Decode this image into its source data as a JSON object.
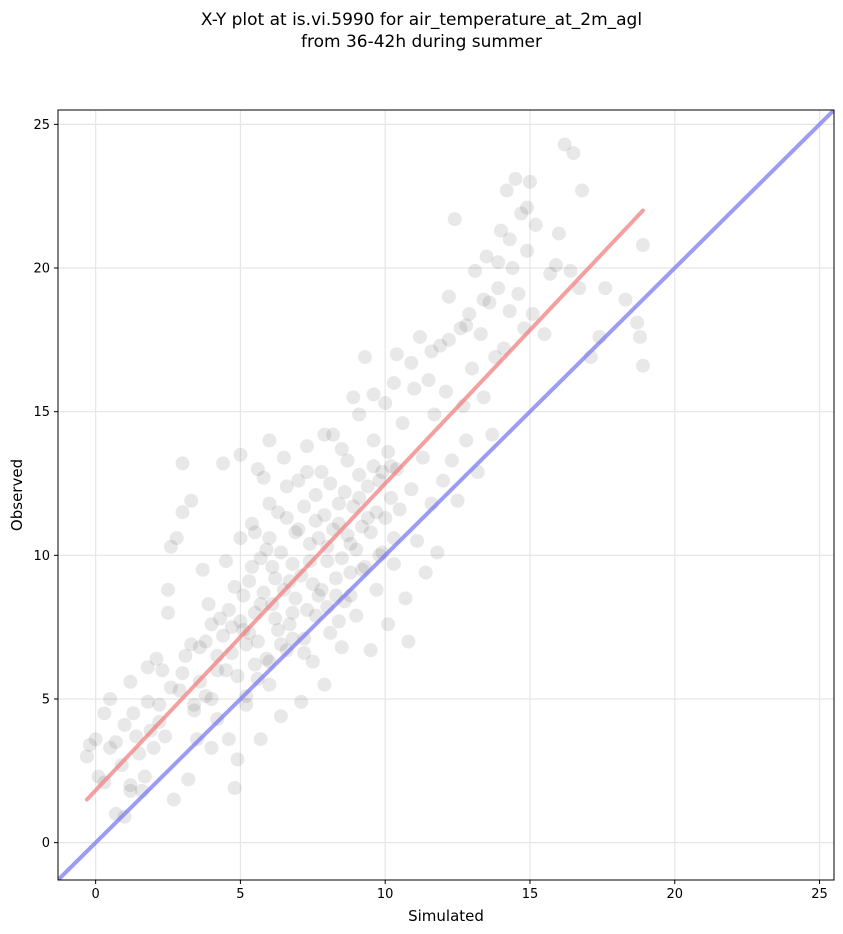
{
  "chart_data": {
    "type": "scatter",
    "title_line1": "X-Y plot at is.vi.5990 for air_temperature_at_2m_agl",
    "title_line2": "from 36-42h during summer",
    "xlabel": "Simulated",
    "ylabel": "Observed",
    "xlim": [
      -1.3,
      25.5
    ],
    "ylim": [
      -1.3,
      25.5
    ],
    "xticks": [
      0,
      5,
      10,
      15,
      20,
      25
    ],
    "yticks": [
      0,
      5,
      10,
      15,
      20,
      25
    ],
    "grid": true,
    "point_color": "#000000",
    "point_alpha": 0.09,
    "fit_line": {
      "color": "#f08080",
      "x": [
        -0.3,
        18.9
      ],
      "y": [
        1.5,
        22.0
      ]
    },
    "identity_line": {
      "color": "#7b7bf0",
      "x": [
        -1.3,
        25.5
      ],
      "y": [
        -1.3,
        25.5
      ]
    },
    "points": [
      [
        -0.3,
        3.0
      ],
      [
        -0.2,
        3.4
      ],
      [
        0.0,
        3.6
      ],
      [
        0.1,
        2.3
      ],
      [
        0.3,
        2.1
      ],
      [
        0.3,
        4.5
      ],
      [
        0.5,
        3.3
      ],
      [
        0.5,
        5.0
      ],
      [
        0.7,
        3.5
      ],
      [
        0.7,
        1.0
      ],
      [
        1.0,
        0.9
      ],
      [
        1.0,
        4.1
      ],
      [
        1.2,
        2.0
      ],
      [
        1.2,
        1.8
      ],
      [
        1.2,
        5.6
      ],
      [
        1.3,
        4.5
      ],
      [
        1.5,
        3.1
      ],
      [
        1.6,
        1.8
      ],
      [
        1.7,
        2.3
      ],
      [
        1.8,
        6.1
      ],
      [
        1.8,
        4.9
      ],
      [
        2.0,
        3.3
      ],
      [
        2.2,
        4.2
      ],
      [
        2.3,
        6.0
      ],
      [
        2.4,
        3.7
      ],
      [
        2.5,
        8.8
      ],
      [
        2.5,
        8.0
      ],
      [
        2.6,
        10.3
      ],
      [
        2.7,
        1.5
      ],
      [
        2.8,
        10.6
      ],
      [
        2.9,
        5.3
      ],
      [
        3.0,
        13.2
      ],
      [
        3.0,
        11.5
      ],
      [
        3.1,
        6.5
      ],
      [
        3.2,
        2.2
      ],
      [
        3.3,
        11.9
      ],
      [
        3.3,
        6.9
      ],
      [
        3.4,
        4.8
      ],
      [
        3.5,
        3.6
      ],
      [
        3.6,
        5.6
      ],
      [
        3.7,
        9.5
      ],
      [
        3.8,
        7.0
      ],
      [
        3.9,
        8.3
      ],
      [
        4.0,
        5.0
      ],
      [
        4.0,
        3.3
      ],
      [
        4.2,
        6.5
      ],
      [
        4.2,
        4.3
      ],
      [
        4.3,
        7.8
      ],
      [
        4.4,
        13.2
      ],
      [
        4.5,
        6.0
      ],
      [
        4.6,
        3.6
      ],
      [
        4.7,
        7.5
      ],
      [
        4.8,
        1.9
      ],
      [
        4.8,
        8.9
      ],
      [
        4.9,
        2.9
      ],
      [
        5.0,
        10.6
      ],
      [
        5.0,
        13.5
      ],
      [
        5.1,
        7.4
      ],
      [
        5.2,
        4.8
      ],
      [
        5.3,
        9.1
      ],
      [
        5.4,
        11.1
      ],
      [
        5.5,
        6.2
      ],
      [
        5.6,
        13.0
      ],
      [
        5.7,
        3.6
      ],
      [
        5.7,
        8.3
      ],
      [
        5.8,
        12.7
      ],
      [
        5.9,
        10.2
      ],
      [
        6.0,
        5.5
      ],
      [
        6.0,
        14.0
      ],
      [
        6.1,
        9.6
      ],
      [
        6.2,
        7.8
      ],
      [
        6.3,
        11.5
      ],
      [
        6.4,
        4.4
      ],
      [
        6.5,
        13.4
      ],
      [
        6.6,
        6.7
      ],
      [
        6.7,
        9.1
      ],
      [
        6.8,
        8.0
      ],
      [
        6.9,
        10.8
      ],
      [
        7.0,
        12.6
      ],
      [
        7.1,
        4.9
      ],
      [
        7.2,
        7.1
      ],
      [
        7.3,
        13.8
      ],
      [
        7.4,
        9.8
      ],
      [
        7.5,
        6.3
      ],
      [
        7.6,
        11.2
      ],
      [
        7.7,
        8.6
      ],
      [
        7.8,
        12.9
      ],
      [
        7.9,
        5.5
      ],
      [
        8.0,
        10.3
      ],
      [
        8.1,
        7.3
      ],
      [
        8.2,
        14.2
      ],
      [
        8.3,
        9.2
      ],
      [
        8.4,
        11.8
      ],
      [
        8.5,
        6.8
      ],
      [
        8.6,
        8.4
      ],
      [
        8.7,
        13.3
      ],
      [
        8.8,
        10.4
      ],
      [
        8.9,
        15.5
      ],
      [
        9.0,
        7.9
      ],
      [
        9.1,
        12.0
      ],
      [
        9.2,
        9.5
      ],
      [
        9.3,
        16.9
      ],
      [
        9.4,
        11.3
      ],
      [
        9.5,
        6.7
      ],
      [
        9.6,
        14.0
      ],
      [
        9.7,
        8.8
      ],
      [
        9.8,
        12.6
      ],
      [
        9.9,
        10.1
      ],
      [
        10.0,
        15.3
      ],
      [
        10.1,
        7.6
      ],
      [
        10.2,
        13.1
      ],
      [
        10.3,
        9.7
      ],
      [
        10.4,
        17.0
      ],
      [
        10.5,
        11.6
      ],
      [
        10.6,
        14.6
      ],
      [
        10.7,
        8.5
      ],
      [
        10.8,
        7.0
      ],
      [
        10.9,
        12.3
      ],
      [
        11.0,
        15.8
      ],
      [
        11.1,
        10.5
      ],
      [
        11.2,
        17.6
      ],
      [
        11.3,
        13.4
      ],
      [
        11.4,
        9.4
      ],
      [
        11.5,
        16.1
      ],
      [
        11.6,
        11.8
      ],
      [
        11.7,
        14.9
      ],
      [
        11.8,
        10.1
      ],
      [
        11.9,
        17.3
      ],
      [
        12.0,
        12.6
      ],
      [
        12.1,
        15.7
      ],
      [
        12.2,
        19.0
      ],
      [
        12.3,
        13.3
      ],
      [
        12.4,
        21.7
      ],
      [
        12.5,
        11.9
      ],
      [
        12.6,
        17.9
      ],
      [
        12.7,
        15.2
      ],
      [
        12.8,
        14.0
      ],
      [
        12.9,
        18.4
      ],
      [
        13.0,
        16.5
      ],
      [
        13.1,
        19.9
      ],
      [
        13.2,
        12.9
      ],
      [
        13.3,
        17.7
      ],
      [
        13.4,
        15.5
      ],
      [
        13.5,
        20.4
      ],
      [
        13.6,
        18.8
      ],
      [
        13.7,
        14.2
      ],
      [
        13.8,
        16.9
      ],
      [
        13.9,
        19.3
      ],
      [
        14.0,
        21.3
      ],
      [
        14.1,
        17.2
      ],
      [
        14.2,
        22.7
      ],
      [
        14.3,
        18.5
      ],
      [
        14.4,
        20.0
      ],
      [
        14.5,
        23.1
      ],
      [
        14.6,
        19.1
      ],
      [
        14.7,
        21.9
      ],
      [
        14.8,
        17.9
      ],
      [
        14.9,
        20.6
      ],
      [
        15.0,
        23.0
      ],
      [
        15.1,
        18.4
      ],
      [
        15.5,
        17.7
      ],
      [
        15.7,
        19.8
      ],
      [
        15.9,
        20.1
      ],
      [
        16.0,
        21.2
      ],
      [
        16.2,
        24.3
      ],
      [
        16.4,
        19.9
      ],
      [
        16.5,
        24.0
      ],
      [
        16.7,
        19.3
      ],
      [
        16.8,
        22.7
      ],
      [
        17.1,
        16.9
      ],
      [
        17.4,
        17.6
      ],
      [
        17.6,
        19.3
      ],
      [
        18.3,
        18.9
      ],
      [
        18.7,
        18.1
      ],
      [
        18.8,
        17.6
      ],
      [
        18.9,
        16.6
      ],
      [
        18.9,
        20.8
      ],
      [
        4.2,
        6.0
      ],
      [
        4.4,
        7.2
      ],
      [
        4.6,
        8.1
      ],
      [
        4.7,
        6.6
      ],
      [
        4.9,
        5.8
      ],
      [
        5.0,
        7.7
      ],
      [
        5.1,
        8.6
      ],
      [
        5.2,
        6.9
      ],
      [
        5.3,
        7.3
      ],
      [
        5.4,
        9.6
      ],
      [
        5.5,
        8.0
      ],
      [
        5.6,
        7.0
      ],
      [
        5.7,
        9.9
      ],
      [
        5.8,
        8.7
      ],
      [
        5.9,
        6.4
      ],
      [
        6.0,
        10.6
      ],
      [
        6.1,
        8.3
      ],
      [
        6.2,
        9.2
      ],
      [
        6.3,
        7.4
      ],
      [
        6.4,
        10.1
      ],
      [
        6.5,
        8.8
      ],
      [
        6.6,
        11.3
      ],
      [
        6.7,
        7.6
      ],
      [
        6.8,
        9.7
      ],
      [
        6.9,
        8.5
      ],
      [
        7.0,
        10.9
      ],
      [
        7.1,
        9.3
      ],
      [
        7.2,
        11.7
      ],
      [
        7.3,
        8.1
      ],
      [
        7.4,
        10.4
      ],
      [
        7.5,
        9.0
      ],
      [
        7.6,
        12.1
      ],
      [
        7.7,
        10.6
      ],
      [
        7.8,
        8.8
      ],
      [
        7.9,
        11.4
      ],
      [
        8.0,
        9.8
      ],
      [
        8.1,
        12.5
      ],
      [
        8.2,
        10.9
      ],
      [
        8.3,
        8.6
      ],
      [
        8.4,
        11.1
      ],
      [
        8.5,
        9.9
      ],
      [
        8.6,
        12.2
      ],
      [
        8.7,
        10.7
      ],
      [
        8.8,
        9.4
      ],
      [
        8.9,
        11.7
      ],
      [
        9.0,
        10.2
      ],
      [
        9.1,
        12.8
      ],
      [
        9.2,
        11.0
      ],
      [
        9.3,
        9.6
      ],
      [
        9.4,
        12.4
      ],
      [
        9.5,
        10.8
      ],
      [
        9.6,
        13.1
      ],
      [
        9.7,
        11.5
      ],
      [
        9.8,
        10.0
      ],
      [
        9.9,
        12.9
      ],
      [
        10.0,
        11.3
      ],
      [
        10.1,
        13.6
      ],
      [
        10.2,
        12.0
      ],
      [
        10.3,
        10.6
      ],
      [
        10.4,
        13.0
      ],
      [
        5.2,
        5.1
      ],
      [
        5.6,
        5.7
      ],
      [
        6.0,
        6.3
      ],
      [
        6.4,
        6.9
      ],
      [
        6.8,
        7.1
      ],
      [
        7.2,
        6.6
      ],
      [
        7.6,
        7.9
      ],
      [
        8.0,
        8.2
      ],
      [
        8.4,
        7.7
      ],
      [
        8.8,
        8.6
      ],
      [
        3.4,
        4.6
      ],
      [
        3.8,
        5.1
      ],
      [
        2.2,
        4.8
      ],
      [
        2.6,
        5.4
      ],
      [
        1.4,
        3.7
      ],
      [
        0.9,
        2.7
      ],
      [
        1.9,
        3.9
      ],
      [
        3.0,
        5.9
      ],
      [
        2.1,
        6.4
      ],
      [
        3.6,
        6.8
      ],
      [
        4.0,
        7.6
      ],
      [
        4.5,
        9.8
      ],
      [
        5.5,
        10.8
      ],
      [
        6.0,
        11.8
      ],
      [
        6.6,
        12.4
      ],
      [
        7.3,
        12.9
      ],
      [
        7.9,
        14.2
      ],
      [
        8.5,
        13.7
      ],
      [
        9.1,
        14.9
      ],
      [
        9.6,
        15.6
      ],
      [
        10.3,
        16.0
      ],
      [
        10.9,
        16.7
      ],
      [
        11.6,
        17.1
      ],
      [
        12.2,
        17.5
      ],
      [
        12.8,
        18.0
      ],
      [
        13.4,
        18.9
      ],
      [
        13.9,
        20.2
      ],
      [
        14.3,
        21.0
      ],
      [
        15.2,
        21.5
      ],
      [
        14.9,
        22.1
      ]
    ]
  }
}
